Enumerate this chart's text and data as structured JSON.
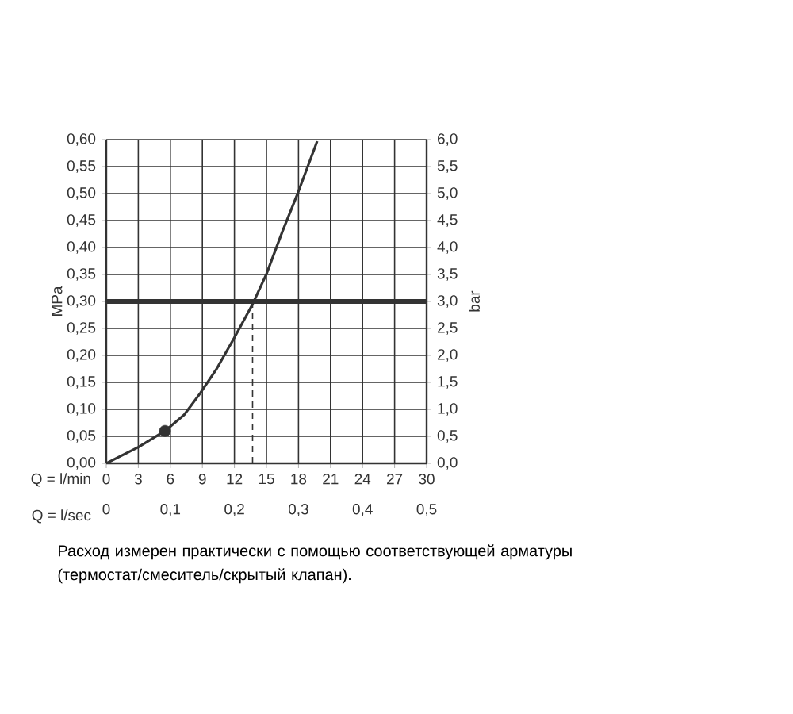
{
  "chart_data": {
    "type": "line",
    "xlabel": "Q = l/min",
    "x2label": "Q = l/sec",
    "ylabel": "MPa",
    "y2label": "bar",
    "xlim": [
      0,
      30
    ],
    "xticks": [
      0,
      3,
      6,
      9,
      12,
      15,
      18,
      21,
      24,
      27,
      30
    ],
    "x2lim": [
      0,
      0.5
    ],
    "x2ticks": [
      0,
      {
        "value": 0.1,
        "label": "0,1"
      },
      {
        "value": 0.2,
        "label": "0,2"
      },
      {
        "value": 0.3,
        "label": "0,3"
      },
      {
        "value": 0.4,
        "label": "0,4"
      },
      {
        "value": 0.5,
        "label": "0,5"
      }
    ],
    "ylim": [
      0,
      0.6
    ],
    "yticks": [
      {
        "value": 0,
        "label": "0,00"
      },
      {
        "value": 0.05,
        "label": "0,05"
      },
      {
        "value": 0.1,
        "label": "0,10"
      },
      {
        "value": 0.15,
        "label": "0,15"
      },
      {
        "value": 0.2,
        "label": "0,20"
      },
      {
        "value": 0.25,
        "label": "0,25"
      },
      {
        "value": 0.3,
        "label": "0,30"
      },
      {
        "value": 0.35,
        "label": "0,35"
      },
      {
        "value": 0.4,
        "label": "0,40"
      },
      {
        "value": 0.45,
        "label": "0,45"
      },
      {
        "value": 0.5,
        "label": "0,50"
      },
      {
        "value": 0.55,
        "label": "0,55"
      },
      {
        "value": 0.6,
        "label": "0,60"
      }
    ],
    "y2lim": [
      0,
      6
    ],
    "y2ticks": [
      {
        "value": 0,
        "label": "0,0"
      },
      {
        "value": 0.5,
        "label": "0,5"
      },
      {
        "value": 1,
        "label": "1,0"
      },
      {
        "value": 1.5,
        "label": "1,5"
      },
      {
        "value": 2,
        "label": "2,0"
      },
      {
        "value": 2.5,
        "label": "2,5"
      },
      {
        "value": 3,
        "label": "3,0"
      },
      {
        "value": 3.5,
        "label": "3,5"
      },
      {
        "value": 4,
        "label": "4,0"
      },
      {
        "value": 4.5,
        "label": "4,5"
      },
      {
        "value": 5,
        "label": "5,0"
      },
      {
        "value": 5.5,
        "label": "5,5"
      },
      {
        "value": 6,
        "label": "6,0"
      }
    ],
    "grid": true,
    "series": [
      {
        "color": "#333333",
        "x": [
          0,
          3,
          5.5,
          7.3,
          8.8,
          10.3,
          12.0,
          13.7,
          15.0,
          16.5,
          17.9,
          19.75
        ],
        "values": [
          0,
          0.03,
          0.06,
          0.09,
          0.13,
          0.174,
          0.233,
          0.295,
          0.351,
          0.43,
          0.499,
          0.597
        ]
      },
      {
        "type": "scatter",
        "color": "#333333",
        "marker": "circle",
        "x": [
          5.5
        ],
        "values": [
          0.06
        ]
      }
    ],
    "ref_lines": [
      {
        "axis": "y",
        "value": 0.3,
        "color": "#333333"
      },
      {
        "axis": "x",
        "value": 13.7,
        "color": "#333333",
        "line_style": "dashed"
      }
    ],
    "annotations": [
      "Расход измерен практически с помощью соответствующей арматуры (термостат/смеситель/скрытый клапан)."
    ]
  }
}
